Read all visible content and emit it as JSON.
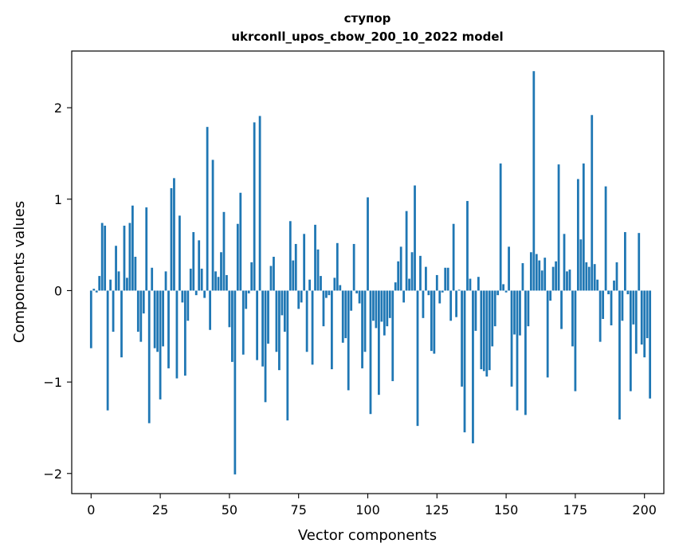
{
  "chart_data": {
    "type": "bar",
    "title": "ступор",
    "subtitle": "ukrconll_upos_cbow_200_10_2022 model",
    "xlabel": "Vector components",
    "ylabel": "Components values",
    "xlim": [
      -7,
      207
    ],
    "ylim": [
      -2.22,
      2.62
    ],
    "x_ticks": [
      0,
      25,
      50,
      75,
      100,
      125,
      150,
      175,
      200
    ],
    "y_ticks": [
      2,
      1,
      0,
      -1,
      -2
    ],
    "x_tick_labels": [
      "0",
      "25",
      "50",
      "75",
      "100",
      "125",
      "150",
      "175",
      "200"
    ],
    "y_tick_labels": [
      "2",
      "1",
      "0",
      "−1",
      "−2"
    ],
    "color": "#1f77b4",
    "values": [
      -0.63,
      0.02,
      -0.02,
      0.16,
      0.74,
      0.71,
      -1.31,
      0.12,
      -0.45,
      0.49,
      0.21,
      -0.73,
      0.71,
      0.14,
      0.74,
      0.93,
      0.37,
      -0.45,
      -0.56,
      -0.25,
      0.91,
      -1.45,
      0.25,
      -0.63,
      -0.67,
      -1.19,
      -0.61,
      0.21,
      -0.85,
      1.12,
      1.23,
      -0.96,
      0.82,
      -0.13,
      -0.93,
      -0.33,
      0.24,
      0.64,
      -0.05,
      0.55,
      0.24,
      -0.08,
      1.79,
      -0.43,
      1.43,
      0.21,
      0.15,
      0.42,
      0.86,
      0.17,
      -0.4,
      -0.78,
      -2.01,
      0.73,
      1.07,
      -0.7,
      -0.2,
      -0.03,
      0.31,
      1.84,
      -0.76,
      1.91,
      -0.83,
      -1.22,
      -0.58,
      0.27,
      0.37,
      -0.67,
      -0.87,
      -0.27,
      -0.45,
      -1.42,
      0.76,
      0.33,
      0.51,
      -0.2,
      -0.13,
      0.62,
      -0.67,
      0.12,
      -0.81,
      0.72,
      0.45,
      0.16,
      -0.39,
      -0.08,
      -0.05,
      -0.86,
      0.14,
      0.52,
      0.06,
      -0.57,
      -0.52,
      -1.09,
      -0.22,
      0.51,
      -0.03,
      -0.14,
      -0.85,
      -0.67,
      1.02,
      -1.35,
      -0.33,
      -0.41,
      -1.14,
      -0.34,
      -0.49,
      -0.39,
      -0.3,
      -0.99,
      0.09,
      0.32,
      0.48,
      -0.13,
      0.87,
      0.13,
      0.42,
      1.15,
      -1.48,
      0.38,
      -0.3,
      0.26,
      -0.05,
      -0.66,
      -0.69,
      0.17,
      -0.14,
      -0.02,
      0.25,
      0.25,
      -0.33,
      0.73,
      -0.29,
      0.01,
      -1.05,
      -1.55,
      0.98,
      0.13,
      -1.67,
      -0.44,
      0.15,
      -0.86,
      -0.88,
      -0.94,
      -0.87,
      -0.61,
      -0.39,
      -0.05,
      1.39,
      0.07,
      -0.02,
      0.48,
      -1.05,
      -0.48,
      -1.31,
      -0.49,
      0.3,
      -1.36,
      -0.39,
      0.42,
      2.4,
      0.4,
      0.33,
      0.22,
      0.36,
      -0.95,
      -0.11,
      0.26,
      0.32,
      1.38,
      -0.42,
      0.62,
      0.21,
      0.23,
      -0.61,
      -1.1,
      1.22,
      0.56,
      1.39,
      0.31,
      0.26,
      1.92,
      0.29,
      0.12,
      -0.56,
      -0.31,
      1.14,
      -0.04,
      -0.38,
      0.11,
      0.31,
      -1.41,
      -0.33,
      0.64,
      -0.04,
      -1.1,
      -0.37,
      -0.69,
      0.63,
      -0.59,
      -0.73,
      -0.52,
      -1.18
    ]
  }
}
